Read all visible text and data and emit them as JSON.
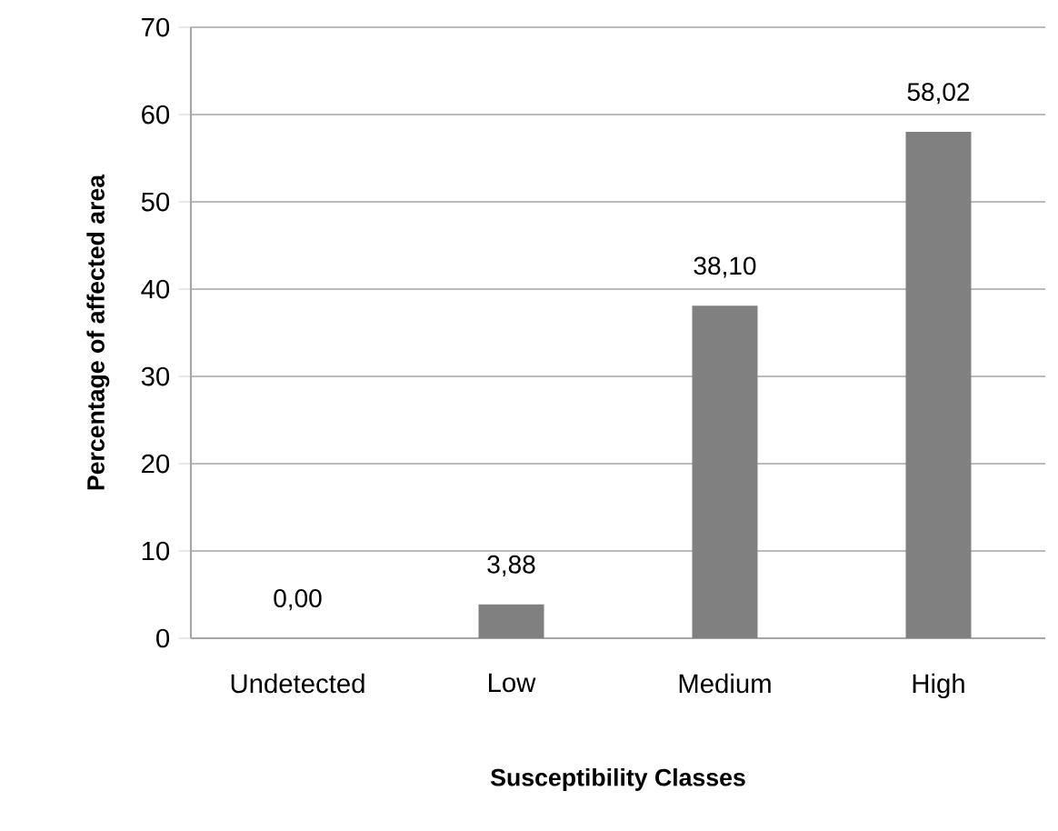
{
  "chart_data": {
    "type": "bar",
    "xlabel": "Susceptibility Classes",
    "ylabel": "Percentage of affected area",
    "categories": [
      "Undetected",
      "Low",
      "Medium",
      "High"
    ],
    "values": [
      0.0,
      3.88,
      38.1,
      58.02
    ],
    "value_labels": [
      "0,00",
      "3,88",
      "38,10",
      "58,02"
    ],
    "color": "#808080",
    "ylim": [
      0,
      70
    ],
    "yticks": [
      0,
      10,
      20,
      30,
      40,
      50,
      60,
      70
    ],
    "grid": "y"
  }
}
